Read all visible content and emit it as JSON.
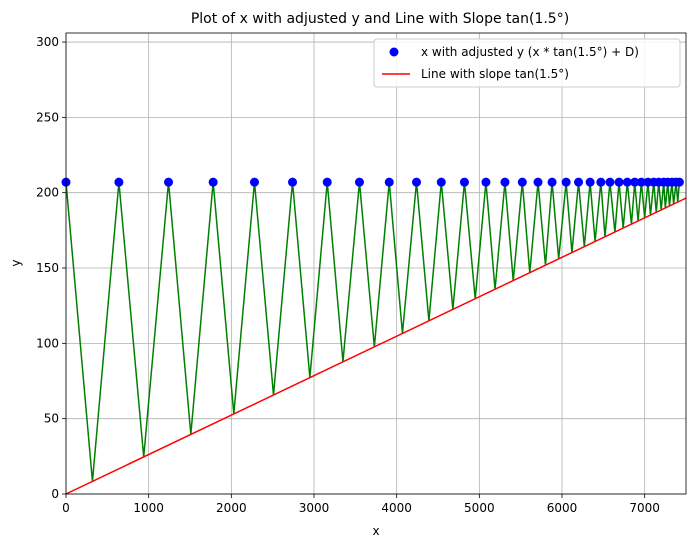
{
  "chart_data": {
    "type": "scatter",
    "title": "Plot of x with adjusted y and Line with Slope tan(1.5°)",
    "xlabel": "x",
    "ylabel": "y",
    "xlim": [
      0,
      7500
    ],
    "ylim": [
      0,
      306
    ],
    "xticks": [
      0,
      1000,
      2000,
      3000,
      4000,
      5000,
      6000,
      7000
    ],
    "yticks": [
      0,
      50,
      100,
      150,
      200,
      250,
      300
    ],
    "grid": true,
    "legend_position": "top-right",
    "slope_line": {
      "name": "Line with slope tan(1.5°)",
      "color": "#ff0000",
      "x": [
        0,
        7500
      ],
      "y": [
        0,
        196.4
      ]
    },
    "scatter": {
      "name": "x with adjusted y (x * tan(1.5°) + D)",
      "color": "#0000ff",
      "x": [
        0,
        640,
        1240,
        1780,
        2280,
        2740,
        3160,
        3550,
        3910,
        4240,
        4540,
        4820,
        5080,
        5310,
        5520,
        5710,
        5880,
        6050,
        6200,
        6340,
        6470,
        6580,
        6690,
        6790,
        6880,
        6960,
        7040,
        7110,
        7170,
        7230,
        7280,
        7330,
        7380,
        7420
      ],
      "y": [
        207,
        207,
        207,
        207,
        207,
        207,
        207,
        207,
        207,
        207,
        207,
        207,
        207,
        207,
        207,
        207,
        207,
        207,
        207,
        207,
        207,
        207,
        207,
        207,
        207,
        207,
        207,
        207,
        207,
        207,
        207,
        207,
        207,
        207
      ]
    },
    "zigzag": {
      "color": "#008000",
      "x": [
        0,
        320,
        640,
        940,
        1240,
        1510,
        1780,
        2030,
        2280,
        2510,
        2740,
        2950,
        3160,
        3350,
        3550,
        3730,
        3910,
        4070,
        4240,
        4390,
        4540,
        4680,
        4820,
        4950,
        5080,
        5190,
        5310,
        5410,
        5520,
        5610,
        5710,
        5800,
        5880,
        5960,
        6050,
        6120,
        6200,
        6270,
        6340,
        6400,
        6470,
        6520,
        6580,
        6640,
        6690,
        6740,
        6790,
        6840,
        6880,
        6920,
        6960,
        7000,
        7040,
        7070,
        7110,
        7140,
        7170,
        7200,
        7230,
        7250,
        7280,
        7300,
        7330,
        7350,
        7380,
        7400,
        7420
      ],
      "y": [
        207,
        8.4,
        207,
        24.6,
        207,
        39.6,
        207,
        53.2,
        207,
        65.7,
        207,
        77.3,
        207,
        87.8,
        207,
        97.7,
        207,
        106.6,
        207,
        115,
        207,
        122.6,
        207,
        129.6,
        207,
        135.9,
        207,
        141.6,
        207,
        146.8,
        207,
        151.9,
        207,
        156.1,
        207,
        160.3,
        207,
        164.2,
        207,
        167.6,
        207,
        170.7,
        207,
        173.8,
        207,
        176.5,
        207,
        179.1,
        207,
        181.2,
        207,
        183.3,
        207,
        185.1,
        207,
        187,
        207,
        188.5,
        207,
        189.9,
        207,
        191.2,
        207,
        192.4,
        207,
        193.7,
        207
      ]
    }
  }
}
